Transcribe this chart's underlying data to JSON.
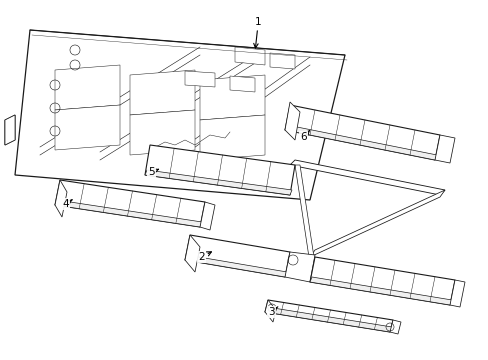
{
  "background_color": "#ffffff",
  "line_color": "#1a1a1a",
  "line_width": 0.7,
  "figure_width": 4.89,
  "figure_height": 3.6,
  "dpi": 100
}
